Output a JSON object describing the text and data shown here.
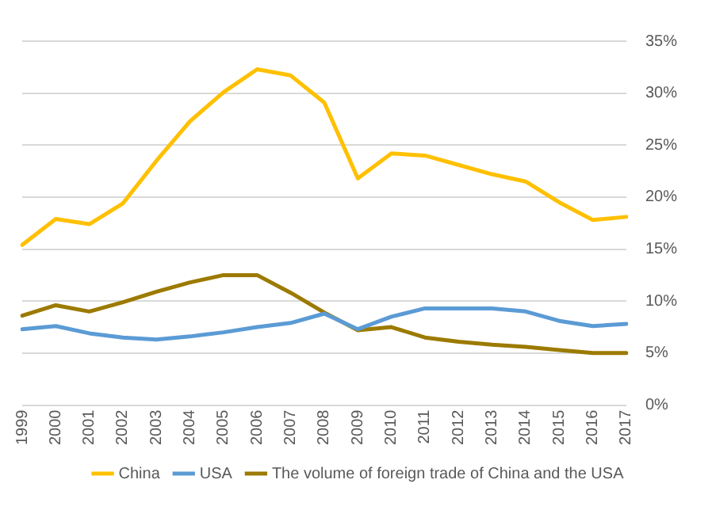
{
  "chart_data": {
    "type": "line",
    "categories": [
      "1999",
      "2000",
      "2001",
      "2002",
      "2003",
      "2004",
      "2005",
      "2006",
      "2007",
      "2008",
      "2009",
      "2010",
      "2011",
      "2012",
      "2013",
      "2014",
      "2015",
      "2016",
      "2017"
    ],
    "series": [
      {
        "name": "China",
        "color": "#ffc000",
        "values": [
          15.4,
          17.9,
          17.4,
          19.4,
          23.5,
          27.3,
          30.1,
          32.3,
          31.7,
          29.1,
          21.8,
          24.2,
          24.0,
          23.1,
          22.2,
          21.5,
          19.5,
          17.8,
          18.1
        ]
      },
      {
        "name": "USA",
        "color": "#5b9bd5",
        "values": [
          7.3,
          7.6,
          6.9,
          6.5,
          6.3,
          6.6,
          7.0,
          7.5,
          7.9,
          8.8,
          7.3,
          8.5,
          9.3,
          9.3,
          9.3,
          9.0,
          8.1,
          7.6,
          7.8
        ]
      },
      {
        "name": "The volume of foreign trade of China and the USA",
        "color": "#9c7a00",
        "values": [
          8.6,
          9.6,
          9.0,
          9.9,
          10.9,
          11.8,
          12.5,
          12.5,
          10.8,
          8.9,
          7.2,
          7.5,
          6.5,
          6.1,
          5.8,
          5.6,
          5.3,
          5.0,
          5.0
        ]
      }
    ],
    "ylim": [
      0,
      35
    ],
    "yticks": [
      {
        "value": 0,
        "label": "0%"
      },
      {
        "value": 5,
        "label": "5%"
      },
      {
        "value": 10,
        "label": "10%"
      },
      {
        "value": 15,
        "label": "15%"
      },
      {
        "value": 20,
        "label": "20%"
      },
      {
        "value": 25,
        "label": "25%"
      },
      {
        "value": 30,
        "label": "30%"
      },
      {
        "value": 35,
        "label": "35%"
      }
    ],
    "grid": "y",
    "legend": "bottom",
    "marker": "none",
    "line_style": "solid"
  }
}
